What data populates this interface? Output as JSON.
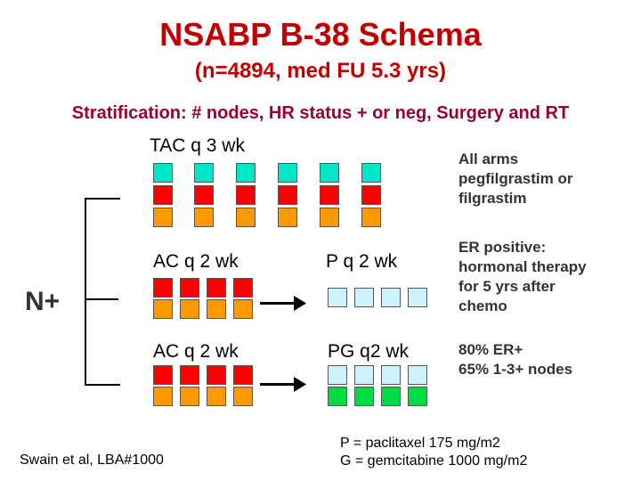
{
  "title": "NSABP B-38 Schema",
  "subtitle": "(n=4894, med FU 5.3 yrs)",
  "stratification": "Stratification: # nodes, HR status + or neg, Surgery and RT",
  "arms": {
    "tac": "TAC q 3 wk",
    "ac1": "AC q 2 wk",
    "p": "P q 2 wk",
    "ac2": "AC q 2 wk",
    "pg": "PG q2 wk"
  },
  "group_label": "N+",
  "notes": {
    "growth_factor": [
      "All arms",
      "pegfilgrastim or",
      "filgrastim"
    ],
    "hormonal": [
      "ER positive:",
      "hormonal therapy",
      "for 5 yrs after",
      "chemo"
    ],
    "population": [
      "80% ER+",
      "65% 1-3+ nodes"
    ]
  },
  "reference": "Swain et al, LBA#1000",
  "legend": [
    "P = paclitaxel 175 mg/m2",
    "G = gemcitabine 1000 mg/m2"
  ],
  "colors": {
    "title": "#c00000",
    "stratification": "#990033",
    "taxane_teal": "#00e6c8",
    "anthracycline_red": "#ff0000",
    "cyclophosphamide_orange": "#ff9900",
    "paclitaxel_lightblue": "#ccf2ff",
    "gemcitabine_green": "#00dd44"
  }
}
